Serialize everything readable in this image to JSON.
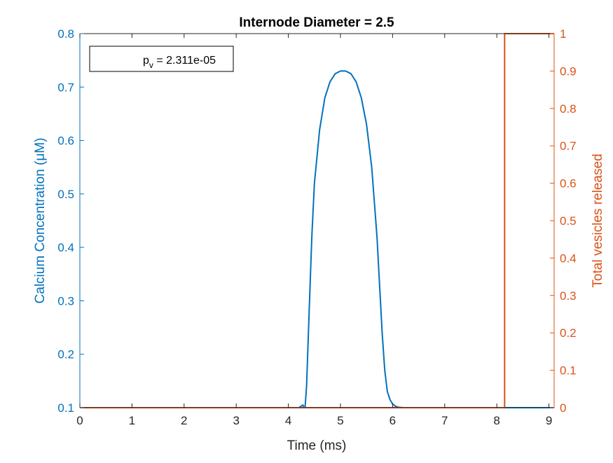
{
  "chart_data": {
    "type": "line",
    "title": "Internode Diameter = 2.5",
    "xlabel": "Time (ms)",
    "ylabel_left": "Calcium Concentration (μM)",
    "ylabel_right": "Total vesicles released",
    "xlim": [
      0,
      9.1
    ],
    "ylim_left": [
      0.1,
      0.8
    ],
    "ylim_right": [
      0,
      1
    ],
    "x_ticks": [
      "0",
      "1",
      "2",
      "3",
      "4",
      "5",
      "6",
      "7",
      "8",
      "9"
    ],
    "y_left_ticks": [
      "0.1",
      "0.2",
      "0.3",
      "0.4",
      "0.5",
      "0.6",
      "0.7",
      "0.8"
    ],
    "y_right_ticks": [
      "0",
      "0.1",
      "0.2",
      "0.3",
      "0.4",
      "0.5",
      "0.6",
      "0.7",
      "0.8",
      "0.9",
      "1"
    ],
    "grid": false,
    "colors": {
      "left_axis": "#0072BD",
      "right_axis": "#D95319",
      "frame": "#262626"
    },
    "annotation": {
      "symbol": "p",
      "subscript": "v",
      "text": " = 2.311e-05"
    },
    "series": [
      {
        "name": "",
        "axis": "left",
        "color": "#0072BD",
        "x": [
          0,
          4.2,
          4.28,
          4.3,
          4.32,
          4.35,
          4.4,
          4.45,
          4.5,
          4.6,
          4.7,
          4.8,
          4.9,
          5.0,
          5.1,
          5.2,
          5.3,
          5.4,
          5.5,
          5.6,
          5.7,
          5.75,
          5.8,
          5.85,
          5.9,
          5.95,
          6.0,
          6.05,
          6.1,
          6.2,
          9.1
        ],
        "y": [
          0.1,
          0.1,
          0.105,
          0.1,
          0.1,
          0.14,
          0.28,
          0.42,
          0.52,
          0.62,
          0.68,
          0.71,
          0.725,
          0.73,
          0.73,
          0.725,
          0.71,
          0.68,
          0.63,
          0.55,
          0.42,
          0.33,
          0.24,
          0.17,
          0.13,
          0.115,
          0.107,
          0.103,
          0.101,
          0.1,
          0.1
        ]
      },
      {
        "name": "",
        "axis": "right",
        "color": "#D95319",
        "x": [
          0,
          8.15,
          8.15,
          9.1
        ],
        "y": [
          0,
          0,
          1,
          1
        ]
      }
    ]
  }
}
